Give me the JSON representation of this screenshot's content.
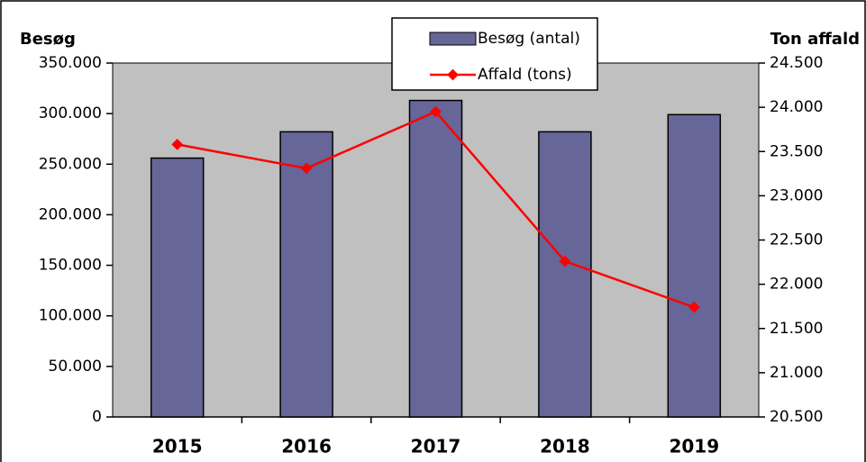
{
  "chart_data": {
    "type": "bar-line",
    "ylabel": "Besøg",
    "y2label": "Ton affald",
    "categories": [
      "2015",
      "2016",
      "2017",
      "2018",
      "2019"
    ],
    "series": [
      {
        "name": "Besøg (antal)",
        "type": "bar",
        "color": "#666699",
        "values": [
          256000,
          282000,
          313000,
          282000,
          299000
        ]
      },
      {
        "name": "Affald (tons)",
        "type": "line",
        "color": "#ff0000",
        "axis": "y2",
        "values": [
          23580,
          23310,
          23950,
          22260,
          21740
        ]
      }
    ],
    "ylim": [
      0,
      350000
    ],
    "yticks": [
      0,
      {
        "value": 50000,
        "label": "50.000"
      },
      {
        "value": 100000,
        "label": "100.000"
      },
      {
        "value": 150000,
        "label": "150.000"
      },
      {
        "value": 200000,
        "label": "200.000"
      },
      {
        "value": 250000,
        "label": "250.000"
      },
      {
        "value": 300000,
        "label": "300.000"
      },
      {
        "value": 350000,
        "label": "350.000"
      }
    ],
    "y2lim": [
      20500,
      24500
    ],
    "y2ticks": [
      {
        "value": 20500,
        "label": "20.500"
      },
      {
        "value": 21000,
        "label": "21.000"
      },
      {
        "value": 21500,
        "label": "21.500"
      },
      {
        "value": 22000,
        "label": "22.000"
      },
      {
        "value": 22500,
        "label": "22.500"
      },
      {
        "value": 23000,
        "label": "23.000"
      },
      {
        "value": 23500,
        "label": "23.500"
      },
      {
        "value": 24000,
        "label": "24.000"
      },
      {
        "value": 24500,
        "label": "24.500"
      }
    ],
    "plot_background": "#c0c0c0",
    "legend": "top"
  }
}
